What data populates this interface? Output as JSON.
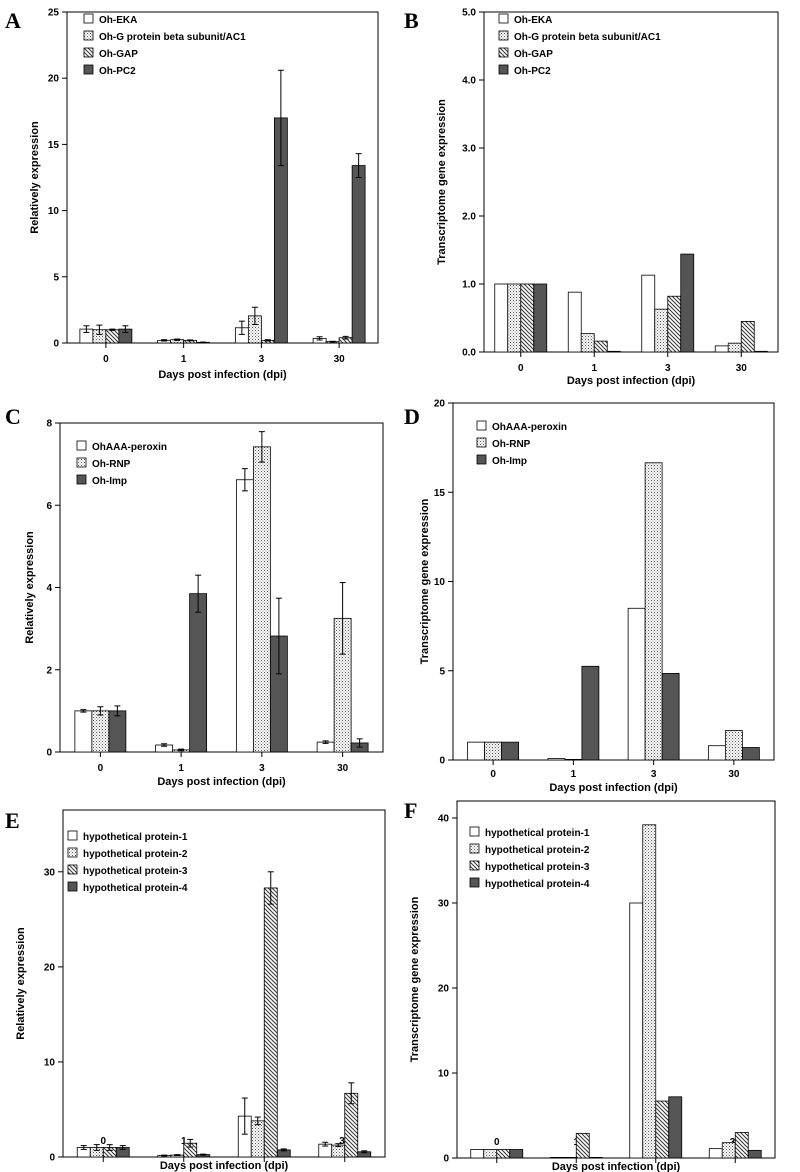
{
  "chart_data": [
    {
      "panel": "A",
      "type": "bar",
      "xlabel": "Days post infection (dpi)",
      "ylabel": "Relatively expression",
      "categories": [
        "0",
        "1",
        "3",
        "30"
      ],
      "ylim": [
        0,
        25
      ],
      "yticks": [
        "0",
        "5",
        "10",
        "15",
        "20",
        "25"
      ],
      "error_bars": true,
      "series": [
        {
          "name": "Oh-EKA",
          "pattern": "white",
          "values": [
            1.05,
            0.2,
            1.15,
            0.35
          ],
          "errors": [
            0.25,
            0.05,
            0.5,
            0.12
          ]
        },
        {
          "name": "Oh-G protein beta subunit/AC1",
          "pattern": "dots",
          "values": [
            1.0,
            0.25,
            2.05,
            0.1
          ],
          "errors": [
            0.35,
            0.05,
            0.65,
            0.03
          ]
        },
        {
          "name": "Oh-GAP",
          "pattern": "hatch",
          "values": [
            1.0,
            0.2,
            0.2,
            0.4
          ],
          "errors": [
            0.05,
            0.03,
            0.05,
            0.1
          ]
        },
        {
          "name": "Oh-PC2",
          "pattern": "dark",
          "values": [
            1.05,
            0.05,
            17.0,
            13.4
          ],
          "errors": [
            0.25,
            0.02,
            3.6,
            0.9
          ]
        }
      ]
    },
    {
      "panel": "B",
      "type": "bar",
      "xlabel": "Days post infection (dpi)",
      "ylabel": "Transcriptome gene expression",
      "categories": [
        "0",
        "1",
        "3",
        "30"
      ],
      "ylim": [
        0,
        5
      ],
      "yticks": [
        "0.0",
        "1.0",
        "2.0",
        "3.0",
        "4.0",
        "5.0"
      ],
      "error_bars": false,
      "series": [
        {
          "name": "Oh-EKA",
          "pattern": "white",
          "values": [
            1.0,
            0.88,
            1.13,
            0.09
          ]
        },
        {
          "name": "Oh-G protein beta subunit/AC1",
          "pattern": "dots",
          "values": [
            1.0,
            0.27,
            0.63,
            0.13
          ]
        },
        {
          "name": "Oh-GAP",
          "pattern": "hatch",
          "values": [
            1.0,
            0.16,
            0.82,
            0.45
          ]
        },
        {
          "name": "Oh-PC2",
          "pattern": "dark",
          "values": [
            1.0,
            0.01,
            1.44,
            0.01
          ]
        }
      ]
    },
    {
      "panel": "C",
      "type": "bar",
      "xlabel": "Days post infection (dpi)",
      "ylabel": "Relatively expression",
      "categories": [
        "0",
        "1",
        "3",
        "30"
      ],
      "ylim": [
        0,
        8
      ],
      "yticks": [
        "0",
        "2",
        "4",
        "6",
        "8"
      ],
      "error_bars": true,
      "series": [
        {
          "name": "OhAAA-peroxin",
          "pattern": "white",
          "values": [
            1.0,
            0.17,
            6.62,
            0.24
          ],
          "errors": [
            0.03,
            0.03,
            0.27,
            0.03
          ]
        },
        {
          "name": "Oh-RNP",
          "pattern": "dots",
          "values": [
            1.0,
            0.05,
            7.42,
            3.25
          ],
          "errors": [
            0.1,
            0.02,
            0.37,
            0.87
          ]
        },
        {
          "name": "Oh-Imp",
          "pattern": "dark",
          "values": [
            1.0,
            3.85,
            2.82,
            0.22
          ],
          "errors": [
            0.12,
            0.45,
            0.92,
            0.1
          ]
        }
      ]
    },
    {
      "panel": "D",
      "type": "bar",
      "xlabel": "Days post infection (dpi)",
      "ylabel": "Transcriptome gene expression",
      "categories": [
        "0",
        "1",
        "3",
        "30"
      ],
      "ylim": [
        0,
        20
      ],
      "yticks": [
        "0",
        "5",
        "10",
        "15",
        "20"
      ],
      "error_bars": false,
      "series": [
        {
          "name": "OhAAA-peroxin",
          "pattern": "white",
          "values": [
            1.0,
            0.08,
            8.5,
            0.8
          ]
        },
        {
          "name": "Oh-RNP",
          "pattern": "dots",
          "values": [
            1.0,
            0.03,
            16.65,
            1.65
          ]
        },
        {
          "name": "Oh-Imp",
          "pattern": "dark",
          "values": [
            1.0,
            5.25,
            4.85,
            0.7
          ]
        }
      ]
    },
    {
      "panel": "E",
      "type": "bar",
      "xlabel": "Days post infection (dpi)",
      "ylabel": "Relatively expression",
      "categories": [
        "0",
        "1",
        "3",
        "30"
      ],
      "ylim": [
        0,
        36.5
      ],
      "yticks": [
        "0",
        "10",
        "20",
        "30"
      ],
      "error_bars": true,
      "series": [
        {
          "name": "hypothetical protein-1",
          "pattern": "white",
          "values": [
            1.0,
            0.15,
            4.3,
            1.35
          ],
          "errors": [
            0.2,
            0.05,
            1.9,
            0.2
          ]
        },
        {
          "name": "hypothetical protein-2",
          "pattern": "dots",
          "values": [
            1.0,
            0.2,
            3.8,
            1.25
          ],
          "errors": [
            0.3,
            0.05,
            0.4,
            0.15
          ]
        },
        {
          "name": "hypothetical protein-3",
          "pattern": "hatch",
          "values": [
            1.0,
            1.45,
            28.3,
            6.7
          ],
          "errors": [
            0.3,
            0.4,
            1.7,
            1.1
          ]
        },
        {
          "name": "hypothetical protein-4",
          "pattern": "dark",
          "values": [
            1.0,
            0.25,
            0.75,
            0.55
          ],
          "errors": [
            0.2,
            0.05,
            0.1,
            0.1
          ]
        }
      ]
    },
    {
      "panel": "F",
      "type": "bar",
      "xlabel": "Days post infection (dpi)",
      "ylabel": "Transcriptome gene expression",
      "categories": [
        "0",
        "1",
        "3",
        "30"
      ],
      "ylim": [
        0,
        42
      ],
      "yticks": [
        "0",
        "10",
        "20",
        "30",
        "40"
      ],
      "error_bars": false,
      "series": [
        {
          "name": "hypothetical protein-1",
          "pattern": "white",
          "values": [
            1.0,
            0.05,
            30.0,
            1.1
          ]
        },
        {
          "name": "hypothetical protein-2",
          "pattern": "dots",
          "values": [
            1.0,
            0.03,
            39.2,
            1.8
          ]
        },
        {
          "name": "hypothetical protein-3",
          "pattern": "hatch",
          "values": [
            1.0,
            2.9,
            6.7,
            3.0
          ]
        },
        {
          "name": "hypothetical protein-4",
          "pattern": "dark",
          "values": [
            1.0,
            0.05,
            7.2,
            0.9
          ]
        }
      ]
    }
  ]
}
